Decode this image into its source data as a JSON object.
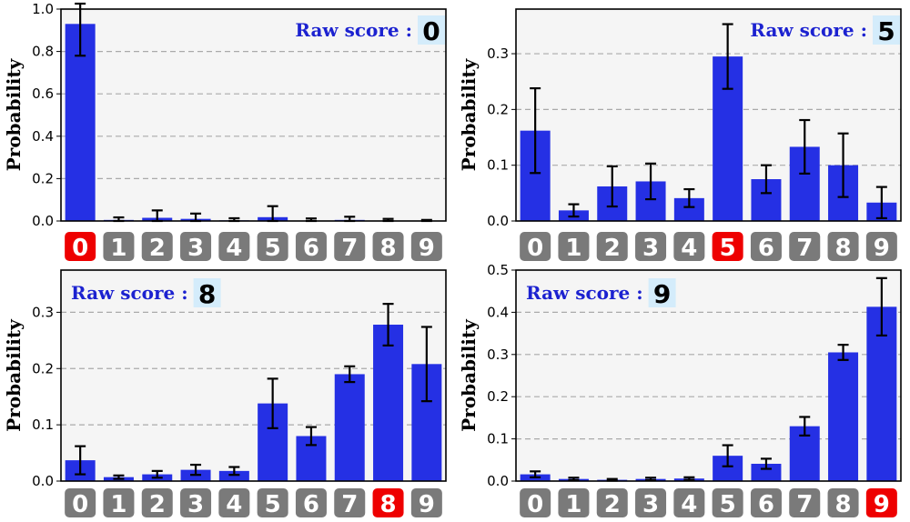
{
  "colors": {
    "bar": "#2530e4",
    "error_bar": "#000000",
    "plot_bg": "#f5f5f5",
    "grid": "#aaaaaa",
    "label_box": "#7a7a7a",
    "label_box_highlight": "#ee0000",
    "raw_score_text": "#1c22d0",
    "raw_score_value_bg": "#d4ecfb"
  },
  "chart_data": [
    {
      "type": "bar",
      "categories": [
        "0",
        "1",
        "2",
        "3",
        "4",
        "5",
        "6",
        "7",
        "8",
        "9"
      ],
      "values": [
        0.93,
        0.005,
        0.015,
        0.01,
        0.003,
        0.018,
        0.002,
        0.005,
        0.002,
        0.001
      ],
      "error": [
        0.15,
        0.012,
        0.035,
        0.025,
        0.01,
        0.052,
        0.01,
        0.015,
        0.008,
        0.004
      ],
      "ylabel": "Probability",
      "ylim": [
        0,
        1.0
      ],
      "yticks": [
        "0.0",
        "0.2",
        "0.4",
        "0.6",
        "0.8",
        "1.0"
      ],
      "grid": true,
      "raw_score_label": "Raw score :",
      "raw_score_value": "0",
      "highlight_index": 0
    },
    {
      "type": "bar",
      "categories": [
        "0",
        "1",
        "2",
        "3",
        "4",
        "5",
        "6",
        "7",
        "8",
        "9"
      ],
      "values": [
        0.162,
        0.019,
        0.062,
        0.071,
        0.041,
        0.295,
        0.075,
        0.133,
        0.1,
        0.033
      ],
      "error": [
        0.076,
        0.011,
        0.036,
        0.032,
        0.016,
        0.058,
        0.025,
        0.048,
        0.057,
        0.028
      ],
      "ylabel": "Probability",
      "ylim": [
        0,
        0.38
      ],
      "yticks": [
        "0.0",
        "0.1",
        "0.2",
        "0.3"
      ],
      "grid": true,
      "raw_score_label": "Raw score :",
      "raw_score_value": "5",
      "highlight_index": 5
    },
    {
      "type": "bar",
      "categories": [
        "0",
        "1",
        "2",
        "3",
        "4",
        "5",
        "6",
        "7",
        "8",
        "9"
      ],
      "values": [
        0.037,
        0.007,
        0.012,
        0.02,
        0.018,
        0.138,
        0.08,
        0.19,
        0.278,
        0.208
      ],
      "error": [
        0.025,
        0.003,
        0.006,
        0.009,
        0.007,
        0.044,
        0.016,
        0.014,
        0.037,
        0.066
      ],
      "ylabel": "Probability",
      "ylim": [
        0,
        0.375
      ],
      "yticks": [
        "0.0",
        "0.1",
        "0.2",
        "0.3"
      ],
      "grid": true,
      "raw_score_label": "Raw score :",
      "raw_score_value": "8",
      "highlight_index": 8
    },
    {
      "type": "bar",
      "categories": [
        "0",
        "1",
        "2",
        "3",
        "4",
        "5",
        "6",
        "7",
        "8",
        "9"
      ],
      "values": [
        0.016,
        0.005,
        0.003,
        0.005,
        0.006,
        0.06,
        0.041,
        0.13,
        0.305,
        0.413
      ],
      "error": [
        0.007,
        0.003,
        0.002,
        0.003,
        0.003,
        0.025,
        0.012,
        0.022,
        0.018,
        0.068
      ],
      "ylabel": "Probability",
      "ylim": [
        0,
        0.5
      ],
      "yticks": [
        "0.0",
        "0.1",
        "0.2",
        "0.3",
        "0.4",
        "0.5"
      ],
      "grid": true,
      "raw_score_label": "Raw score :",
      "raw_score_value": "9",
      "highlight_index": 9
    }
  ]
}
